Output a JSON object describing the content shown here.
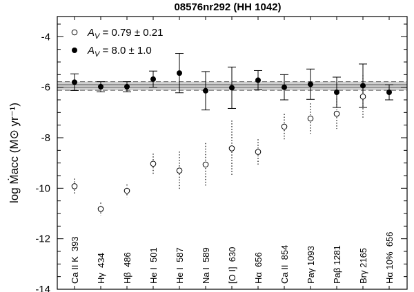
{
  "chart_data": {
    "type": "scatter",
    "title": "08576nr292 (HH 1042)",
    "ylabel": "log Ṁacc (M⊙ yr⁻¹)",
    "xlabel": "",
    "ylim": [
      -14,
      -3.2
    ],
    "yticks": [
      -14,
      -12,
      -10,
      -8,
      -6,
      -4
    ],
    "categories": [
      "Ca II K  393",
      "Hγ  434",
      "Hβ  486",
      "He I  501",
      "He I  587",
      "Na I  589",
      "[O I]  630",
      "Hα  656",
      "Ca II  854",
      "Paγ 1093",
      "Paβ 1281",
      "Brγ 2165",
      "Hα 10%  656"
    ],
    "reference_band": {
      "center": -5.95,
      "inner_half_width": 0.05,
      "outer_half_width": 0.17
    },
    "legend": {
      "position": "top-left"
    },
    "series": [
      {
        "name": "A_V = 0.79 ± 0.21",
        "marker": "open-circle",
        "error_style": "dotted",
        "points": [
          {
            "category": "Ca II K  393",
            "y": -9.92,
            "err": 0.3
          },
          {
            "category": "Hγ  434",
            "y": -10.82,
            "err": 0.25
          },
          {
            "category": "Hβ  486",
            "y": -10.1,
            "err": 0.25
          },
          {
            "category": "He I  501",
            "y": -9.03,
            "err": 0.4
          },
          {
            "category": "He I  587",
            "y": -9.3,
            "err": 0.75
          },
          {
            "category": "Na I  589",
            "y": -9.06,
            "err": 0.85
          },
          {
            "category": "[O I]  630",
            "y": -8.42,
            "err": 1.1
          },
          {
            "category": "Hα  656",
            "y": -8.56,
            "err": 0.5
          },
          {
            "category": "Ca II  854",
            "y": -7.56,
            "err": 0.5
          },
          {
            "category": "Paγ 1093",
            "y": -7.24,
            "err": 0.6
          },
          {
            "category": "Paβ 1281",
            "y": -7.05,
            "err": 0.6
          },
          {
            "category": "Brγ 2165",
            "y": -6.37,
            "err": 0.85
          }
        ]
      },
      {
        "name": "A_V = 8.0 ± 1.0",
        "marker": "filled-circle",
        "error_style": "solid",
        "points": [
          {
            "category": "Ca II K  393",
            "y": -5.8,
            "err": 0.33
          },
          {
            "category": "Hγ  434",
            "y": -5.98,
            "err": 0.2
          },
          {
            "category": "Hβ  486",
            "y": -5.98,
            "err": 0.2
          },
          {
            "category": "He I  501",
            "y": -5.68,
            "err": 0.32
          },
          {
            "category": "He I  587",
            "y": -5.44,
            "err": 0.78
          },
          {
            "category": "Na I  589",
            "y": -6.14,
            "err": 0.76
          },
          {
            "category": "[O I]  630",
            "y": -6.02,
            "err": 0.82
          },
          {
            "category": "Hα  656",
            "y": -5.72,
            "err": 0.38
          },
          {
            "category": "Ca II  854",
            "y": -6.0,
            "err": 0.5
          },
          {
            "category": "Paγ 1093",
            "y": -5.88,
            "err": 0.6
          },
          {
            "category": "Paβ 1281",
            "y": -6.2,
            "err": 0.6
          },
          {
            "category": "Brγ 2165",
            "y": -5.94,
            "err": 0.86
          },
          {
            "category": "Hα 10%  656",
            "y": -6.2,
            "err": 0.3
          }
        ]
      }
    ]
  }
}
